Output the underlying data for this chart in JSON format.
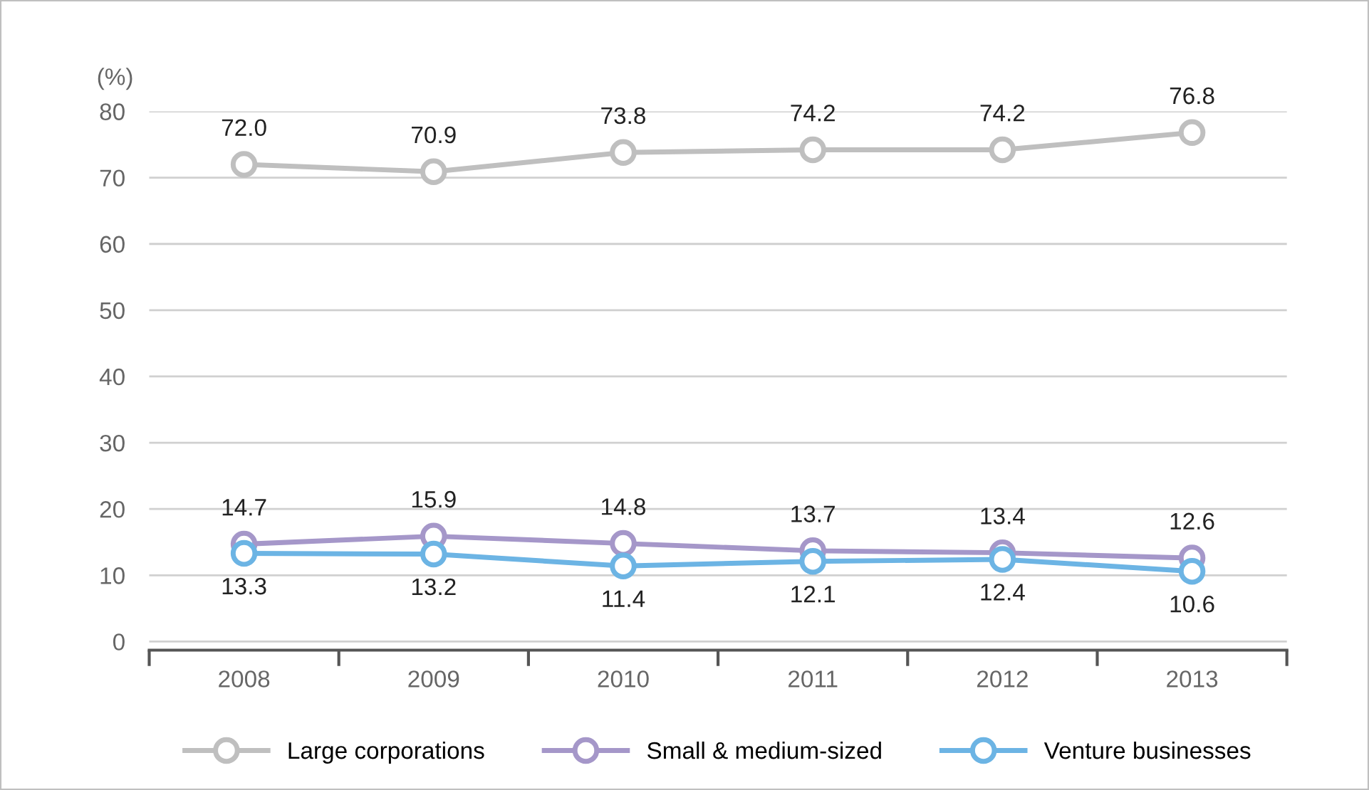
{
  "chart_data": {
    "type": "line",
    "ylabel": "(%)",
    "categories": [
      "2008",
      "2009",
      "2010",
      "2011",
      "2012",
      "2013"
    ],
    "series": [
      {
        "name": "Large corporations",
        "color": "#bfbfbf",
        "values": [
          72.0,
          70.9,
          73.8,
          74.2,
          74.2,
          76.8
        ],
        "value_labels": [
          "72.0",
          "70.9",
          "73.8",
          "74.2",
          "74.2",
          "76.8"
        ]
      },
      {
        "name": "Small & medium-sized",
        "color": "#a597c9",
        "values": [
          14.7,
          15.9,
          14.8,
          13.7,
          13.4,
          12.6
        ],
        "value_labels": [
          "14.7",
          "15.9",
          "14.8",
          "13.7",
          "13.4",
          "12.6"
        ]
      },
      {
        "name": "Venture businesses",
        "color": "#6cb4e4",
        "values": [
          13.3,
          13.2,
          11.4,
          12.1,
          12.4,
          10.6
        ],
        "value_labels": [
          "13.3",
          "13.2",
          "11.4",
          "12.1",
          "12.4",
          "10.6"
        ]
      }
    ],
    "ylim": [
      -1.3,
      80
    ],
    "yticks": [
      0,
      10,
      20,
      30,
      40,
      50,
      60,
      70,
      80
    ],
    "grid": "y",
    "legend": "bottom",
    "marker": "circle",
    "line_style": "solid"
  }
}
